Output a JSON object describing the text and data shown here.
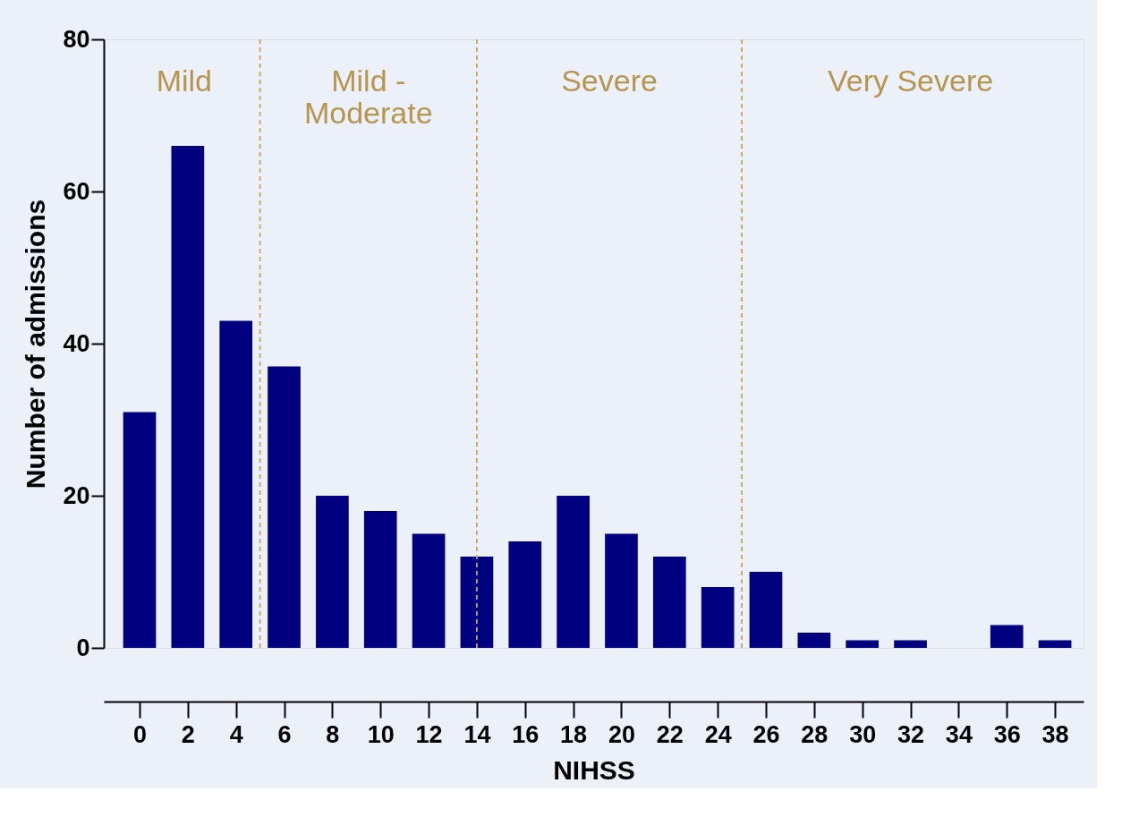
{
  "chart_data": {
    "type": "bar",
    "xlabel": "NIHSS",
    "ylabel": "Number of admissions",
    "x": [
      0,
      2,
      4,
      6,
      8,
      10,
      12,
      14,
      16,
      18,
      20,
      22,
      24,
      26,
      28,
      30,
      32,
      34,
      36,
      38
    ],
    "values": [
      31,
      66,
      43,
      37,
      20,
      18,
      15,
      12,
      14,
      20,
      15,
      12,
      8,
      10,
      2,
      1,
      1,
      0,
      3,
      1
    ],
    "color": "#000080",
    "xlim": [
      -1.3,
      39
    ],
    "xticks": [
      0,
      2,
      4,
      6,
      8,
      10,
      12,
      14,
      16,
      18,
      20,
      22,
      24,
      26,
      28,
      30,
      32,
      34,
      36,
      38
    ],
    "ylim": [
      0,
      80
    ],
    "yticks": [
      0,
      20,
      40,
      60,
      80
    ],
    "grid": false,
    "ref_lines": [
      {
        "axis": "x",
        "value": 5,
        "color": "#c9a45c",
        "line_style": "dashed"
      },
      {
        "axis": "x",
        "value": 14,
        "color": "#c9a45c",
        "line_style": "dashed"
      },
      {
        "axis": "x",
        "value": 25,
        "color": "#c9a45c",
        "line_style": "dashed"
      }
    ],
    "annotations": [
      "Mild",
      "Mild -\nModerate",
      "Severe",
      "Very Severe"
    ]
  }
}
